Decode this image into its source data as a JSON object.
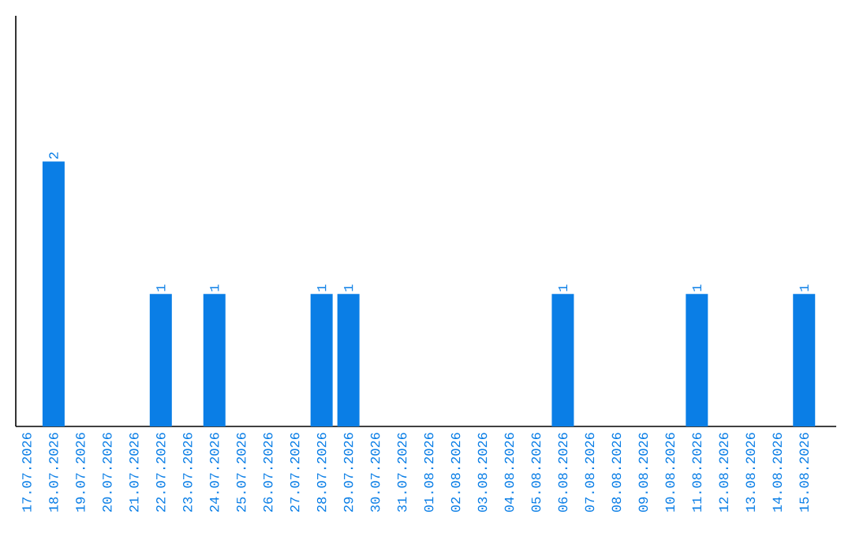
{
  "chart_data": {
    "type": "bar",
    "categories": [
      "17.07.2026",
      "18.07.2026",
      "19.07.2026",
      "20.07.2026",
      "21.07.2026",
      "22.07.2026",
      "23.07.2026",
      "24.07.2026",
      "25.07.2026",
      "26.07.2026",
      "27.07.2026",
      "28.07.2026",
      "29.07.2026",
      "30.07.2026",
      "31.07.2026",
      "01.08.2026",
      "02.08.2026",
      "03.08.2026",
      "04.08.2026",
      "05.08.2026",
      "06.08.2026",
      "07.08.2026",
      "08.08.2026",
      "09.08.2026",
      "10.08.2026",
      "11.08.2026",
      "12.08.2026",
      "13.08.2026",
      "14.08.2026",
      "15.08.2026"
    ],
    "values": [
      0,
      2,
      0,
      0,
      0,
      1,
      0,
      1,
      0,
      0,
      0,
      1,
      1,
      0,
      0,
      0,
      0,
      0,
      0,
      0,
      1,
      0,
      0,
      0,
      0,
      1,
      0,
      0,
      0,
      1
    ],
    "value_labels": [
      null,
      "2",
      null,
      null,
      null,
      "1",
      null,
      "1",
      null,
      null,
      null,
      "1",
      "1",
      null,
      null,
      null,
      null,
      null,
      null,
      null,
      "1",
      null,
      null,
      null,
      null,
      "1",
      null,
      null,
      null,
      "1"
    ],
    "color": "#0a7ee6",
    "ylim": [
      0,
      3.1
    ],
    "tick_labels": "x"
  }
}
